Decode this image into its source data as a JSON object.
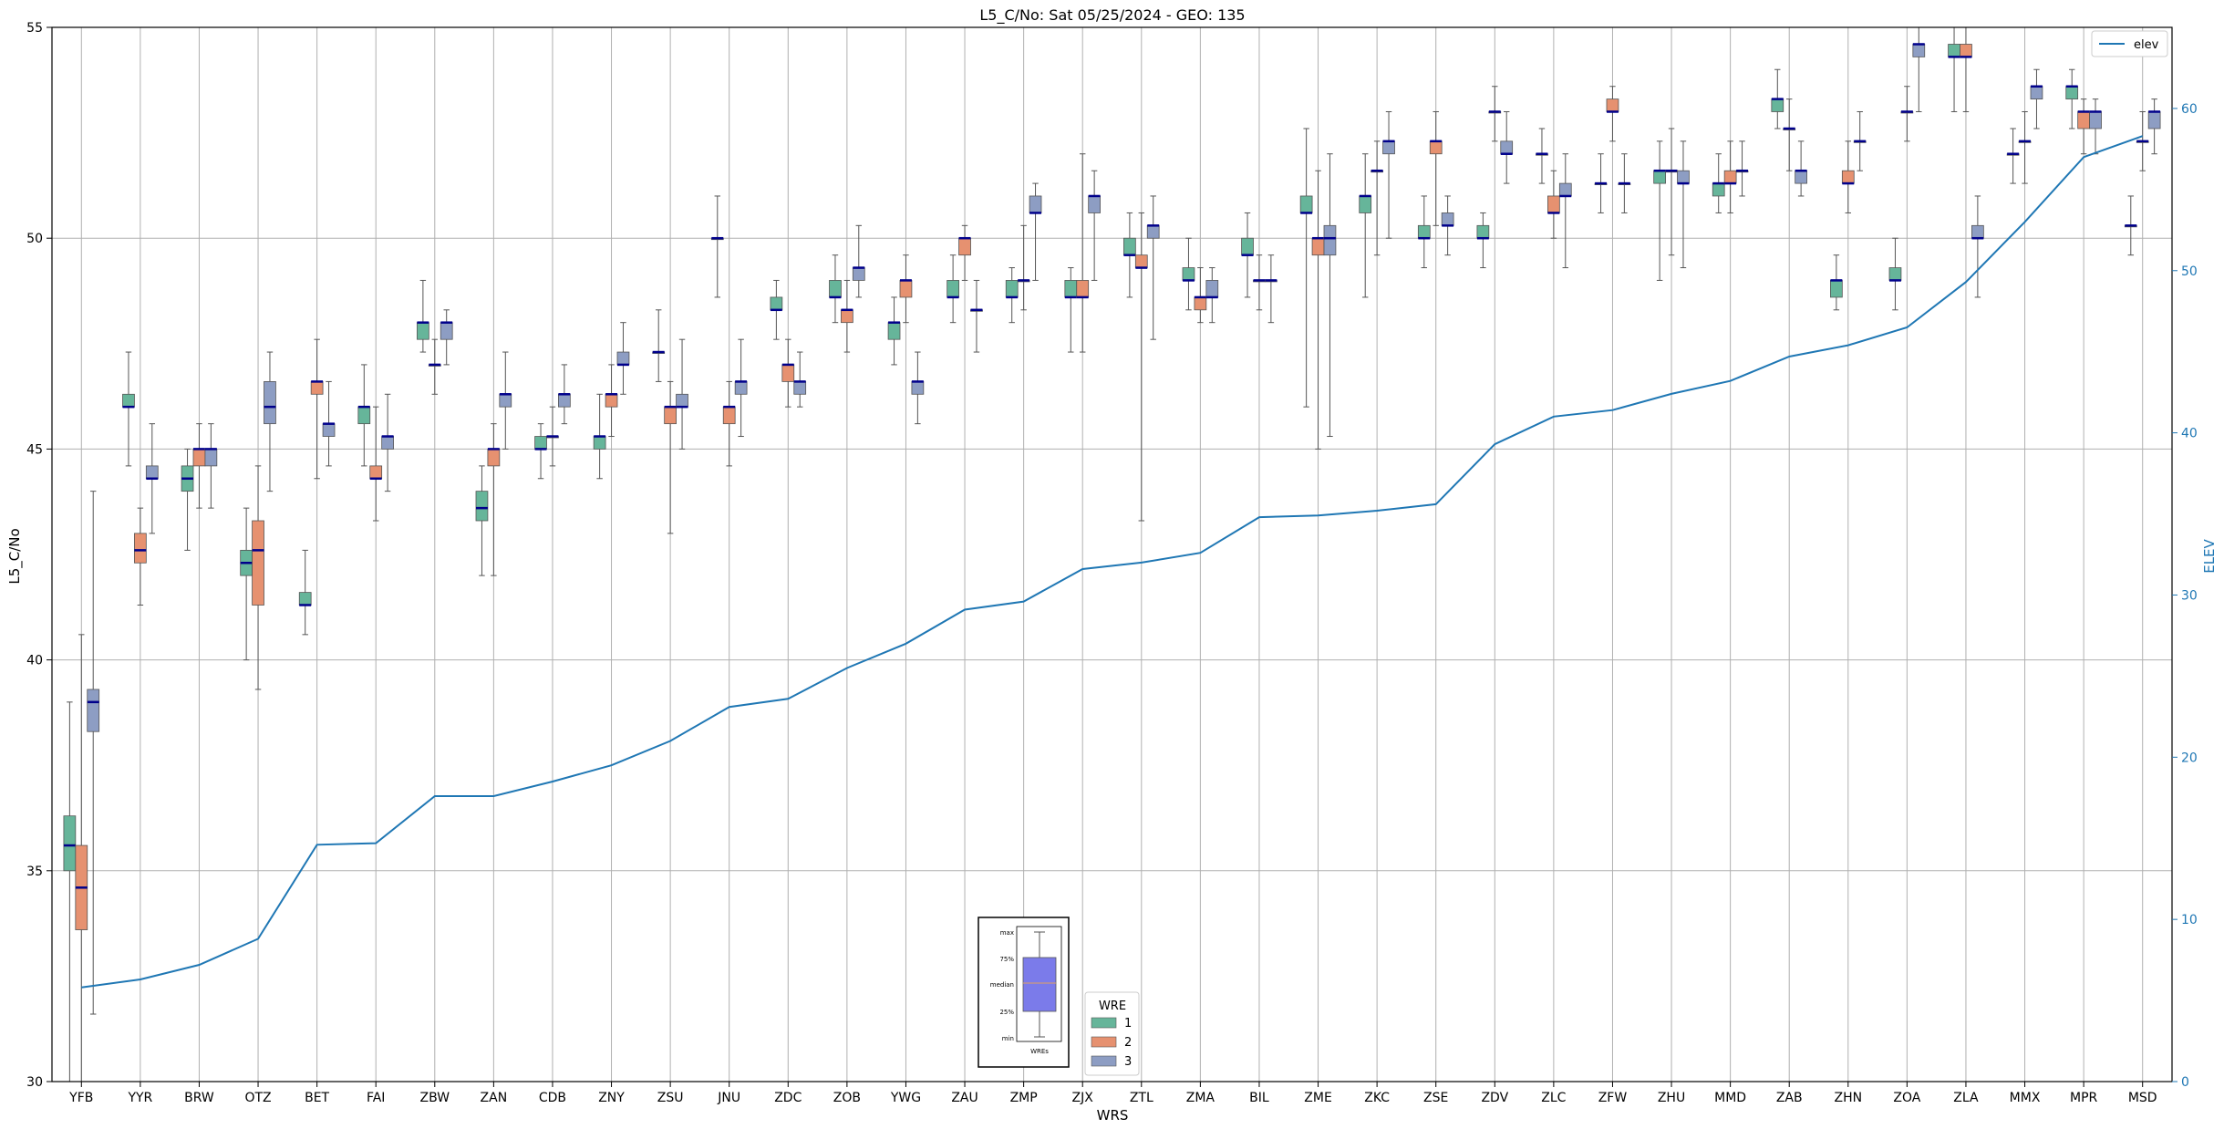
{
  "chart_data": {
    "type": "box",
    "title": "L5_C/No: Sat 05/25/2024 - GEO: 135",
    "xlabel": "WRS",
    "ylabel": "L5_C/No",
    "ylabel_right": "ELEV",
    "ylim": [
      30,
      55
    ],
    "ylim_right": [
      0,
      65
    ],
    "yticks": [
      30,
      35,
      40,
      45,
      50,
      55
    ],
    "yticks_right": [
      0,
      10,
      20,
      30,
      40,
      50,
      60
    ],
    "grid": true,
    "colors": {
      "1": "#66b59a",
      "2": "#e69170",
      "3": "#8d9dc3",
      "median": "#00008b",
      "elev": "#1f77b4"
    },
    "legend_wre": {
      "title": "WRE",
      "items": [
        "1",
        "2",
        "3"
      ],
      "placement": "bottom-center"
    },
    "legend_line": {
      "label": "elev",
      "placement": "top-right"
    },
    "inset_legend": {
      "labels": [
        "max",
        "75%",
        "median",
        "25%",
        "min"
      ],
      "xlabel": "WREs"
    },
    "categories": [
      "YFB",
      "YYR",
      "BRW",
      "OTZ",
      "BET",
      "FAI",
      "ZBW",
      "ZAN",
      "CDB",
      "ZNY",
      "ZSU",
      "JNU",
      "ZDC",
      "ZOB",
      "YWG",
      "ZAU",
      "ZMP",
      "ZJX",
      "ZTL",
      "ZMA",
      "BIL",
      "ZME",
      "ZKC",
      "ZSE",
      "ZDV",
      "ZLC",
      "ZFW",
      "ZHU",
      "MMD",
      "ZAB",
      "ZHN",
      "ZOA",
      "ZLA",
      "MMX",
      "MPR",
      "MSD"
    ],
    "elev": [
      5.8,
      6.3,
      7.2,
      8.8,
      14.6,
      14.7,
      17.6,
      17.6,
      18.5,
      19.5,
      21.0,
      23.1,
      23.6,
      25.5,
      27.0,
      29.1,
      29.6,
      31.6,
      32.0,
      32.6,
      34.8,
      34.9,
      35.2,
      35.6,
      39.3,
      41.0,
      41.4,
      42.4,
      43.2,
      44.7,
      45.4,
      46.5,
      49.3,
      53.0,
      57.0,
      58.3
    ],
    "boxes": [
      {
        "station": "YFB",
        "wre": 1,
        "min": 30.0,
        "q1": 35.0,
        "median": 35.6,
        "q3": 36.3,
        "max": 39.0
      },
      {
        "station": "YFB",
        "wre": 2,
        "min": 30.0,
        "q1": 33.6,
        "median": 34.6,
        "q3": 35.6,
        "max": 40.6
      },
      {
        "station": "YFB",
        "wre": 3,
        "min": 31.6,
        "q1": 38.3,
        "median": 39.0,
        "q3": 39.3,
        "max": 44.0
      },
      {
        "station": "YYR",
        "wre": 1,
        "min": 44.6,
        "q1": 46.0,
        "median": 46.0,
        "q3": 46.3,
        "max": 47.3
      },
      {
        "station": "YYR",
        "wre": 2,
        "min": 41.3,
        "q1": 42.3,
        "median": 42.6,
        "q3": 43.0,
        "max": 43.6
      },
      {
        "station": "YYR",
        "wre": 3,
        "min": 43.0,
        "q1": 44.3,
        "median": 44.3,
        "q3": 44.6,
        "max": 45.6
      },
      {
        "station": "BRW",
        "wre": 1,
        "min": 42.6,
        "q1": 44.0,
        "median": 44.3,
        "q3": 44.6,
        "max": 45.0
      },
      {
        "station": "BRW",
        "wre": 2,
        "min": 43.6,
        "q1": 44.6,
        "median": 45.0,
        "q3": 45.0,
        "max": 45.6
      },
      {
        "station": "BRW",
        "wre": 3,
        "min": 43.6,
        "q1": 44.6,
        "median": 45.0,
        "q3": 45.0,
        "max": 45.6
      },
      {
        "station": "OTZ",
        "wre": 1,
        "min": 40.0,
        "q1": 42.0,
        "median": 42.3,
        "q3": 42.6,
        "max": 43.6
      },
      {
        "station": "OTZ",
        "wre": 2,
        "min": 39.3,
        "q1": 41.3,
        "median": 42.6,
        "q3": 43.3,
        "max": 44.6
      },
      {
        "station": "OTZ",
        "wre": 3,
        "min": 44.0,
        "q1": 45.6,
        "median": 46.0,
        "q3": 46.6,
        "max": 47.3
      },
      {
        "station": "BET",
        "wre": 1,
        "min": 40.6,
        "q1": 41.3,
        "median": 41.3,
        "q3": 41.6,
        "max": 42.6
      },
      {
        "station": "BET",
        "wre": 2,
        "min": 44.3,
        "q1": 46.3,
        "median": 46.6,
        "q3": 46.6,
        "max": 47.6
      },
      {
        "station": "BET",
        "wre": 3,
        "min": 44.6,
        "q1": 45.3,
        "median": 45.6,
        "q3": 45.6,
        "max": 46.6
      },
      {
        "station": "FAI",
        "wre": 1,
        "min": 44.6,
        "q1": 45.6,
        "median": 46.0,
        "q3": 46.0,
        "max": 47.0
      },
      {
        "station": "FAI",
        "wre": 2,
        "min": 43.3,
        "q1": 44.3,
        "median": 44.3,
        "q3": 44.6,
        "max": 46.0
      },
      {
        "station": "FAI",
        "wre": 3,
        "min": 44.0,
        "q1": 45.0,
        "median": 45.3,
        "q3": 45.3,
        "max": 46.3
      },
      {
        "station": "ZBW",
        "wre": 1,
        "min": 47.3,
        "q1": 47.6,
        "median": 48.0,
        "q3": 48.0,
        "max": 49.0
      },
      {
        "station": "ZBW",
        "wre": 2,
        "min": 46.3,
        "q1": 47.0,
        "median": 47.0,
        "q3": 47.0,
        "max": 47.6
      },
      {
        "station": "ZBW",
        "wre": 3,
        "min": 47.0,
        "q1": 47.6,
        "median": 48.0,
        "q3": 48.0,
        "max": 48.3
      },
      {
        "station": "ZAN",
        "wre": 1,
        "min": 42.0,
        "q1": 43.3,
        "median": 43.6,
        "q3": 44.0,
        "max": 44.6
      },
      {
        "station": "ZAN",
        "wre": 2,
        "min": 42.0,
        "q1": 44.6,
        "median": 45.0,
        "q3": 45.0,
        "max": 45.6
      },
      {
        "station": "ZAN",
        "wre": 3,
        "min": 45.0,
        "q1": 46.0,
        "median": 46.3,
        "q3": 46.3,
        "max": 47.3
      },
      {
        "station": "CDB",
        "wre": 1,
        "min": 44.3,
        "q1": 45.0,
        "median": 45.0,
        "q3": 45.3,
        "max": 45.6
      },
      {
        "station": "CDB",
        "wre": 2,
        "min": 44.6,
        "q1": 45.3,
        "median": 45.3,
        "q3": 45.3,
        "max": 46.0
      },
      {
        "station": "CDB",
        "wre": 3,
        "min": 45.6,
        "q1": 46.0,
        "median": 46.3,
        "q3": 46.3,
        "max": 47.0
      },
      {
        "station": "ZNY",
        "wre": 1,
        "min": 44.3,
        "q1": 45.0,
        "median": 45.3,
        "q3": 45.3,
        "max": 46.3
      },
      {
        "station": "ZNY",
        "wre": 2,
        "min": 45.3,
        "q1": 46.0,
        "median": 46.3,
        "q3": 46.3,
        "max": 47.0
      },
      {
        "station": "ZNY",
        "wre": 3,
        "min": 46.3,
        "q1": 47.0,
        "median": 47.0,
        "q3": 47.3,
        "max": 48.0
      },
      {
        "station": "ZSU",
        "wre": 1,
        "min": 46.6,
        "q1": 47.3,
        "median": 47.3,
        "q3": 47.3,
        "max": 48.3
      },
      {
        "station": "ZSU",
        "wre": 2,
        "min": 43.0,
        "q1": 45.6,
        "median": 46.0,
        "q3": 46.0,
        "max": 46.6
      },
      {
        "station": "ZSU",
        "wre": 3,
        "min": 45.0,
        "q1": 46.0,
        "median": 46.0,
        "q3": 46.3,
        "max": 47.6
      },
      {
        "station": "JNU",
        "wre": 1,
        "min": 48.6,
        "q1": 50.0,
        "median": 50.0,
        "q3": 50.0,
        "max": 51.0
      },
      {
        "station": "JNU",
        "wre": 2,
        "min": 44.6,
        "q1": 45.6,
        "median": 46.0,
        "q3": 46.0,
        "max": 46.6
      },
      {
        "station": "JNU",
        "wre": 3,
        "min": 45.3,
        "q1": 46.3,
        "median": 46.6,
        "q3": 46.6,
        "max": 47.6
      },
      {
        "station": "ZDC",
        "wre": 1,
        "min": 47.6,
        "q1": 48.3,
        "median": 48.3,
        "q3": 48.6,
        "max": 49.0
      },
      {
        "station": "ZDC",
        "wre": 2,
        "min": 46.0,
        "q1": 46.6,
        "median": 47.0,
        "q3": 47.0,
        "max": 47.6
      },
      {
        "station": "ZDC",
        "wre": 3,
        "min": 46.0,
        "q1": 46.3,
        "median": 46.6,
        "q3": 46.6,
        "max": 47.3
      },
      {
        "station": "ZOB",
        "wre": 1,
        "min": 48.0,
        "q1": 48.6,
        "median": 48.6,
        "q3": 49.0,
        "max": 49.6
      },
      {
        "station": "ZOB",
        "wre": 2,
        "min": 47.3,
        "q1": 48.0,
        "median": 48.3,
        "q3": 48.3,
        "max": 49.0
      },
      {
        "station": "ZOB",
        "wre": 3,
        "min": 48.6,
        "q1": 49.0,
        "median": 49.3,
        "q3": 49.3,
        "max": 50.3
      },
      {
        "station": "YWG",
        "wre": 1,
        "min": 47.0,
        "q1": 47.6,
        "median": 48.0,
        "q3": 48.0,
        "max": 48.6
      },
      {
        "station": "YWG",
        "wre": 2,
        "min": 48.0,
        "q1": 48.6,
        "median": 49.0,
        "q3": 49.0,
        "max": 49.6
      },
      {
        "station": "YWG",
        "wre": 3,
        "min": 45.6,
        "q1": 46.3,
        "median": 46.6,
        "q3": 46.6,
        "max": 47.3
      },
      {
        "station": "ZAU",
        "wre": 1,
        "min": 48.0,
        "q1": 48.6,
        "median": 48.6,
        "q3": 49.0,
        "max": 49.6
      },
      {
        "station": "ZAU",
        "wre": 2,
        "min": 49.0,
        "q1": 49.6,
        "median": 50.0,
        "q3": 50.0,
        "max": 50.3
      },
      {
        "station": "ZAU",
        "wre": 3,
        "min": 47.3,
        "q1": 48.3,
        "median": 48.3,
        "q3": 48.3,
        "max": 49.0
      },
      {
        "station": "ZMP",
        "wre": 1,
        "min": 48.0,
        "q1": 48.6,
        "median": 48.6,
        "q3": 49.0,
        "max": 49.3
      },
      {
        "station": "ZMP",
        "wre": 2,
        "min": 48.3,
        "q1": 49.0,
        "median": 49.0,
        "q3": 49.0,
        "max": 50.3
      },
      {
        "station": "ZMP",
        "wre": 3,
        "min": 49.0,
        "q1": 50.6,
        "median": 50.6,
        "q3": 51.0,
        "max": 51.3
      },
      {
        "station": "ZJX",
        "wre": 1,
        "min": 47.3,
        "q1": 48.6,
        "median": 48.6,
        "q3": 49.0,
        "max": 49.3
      },
      {
        "station": "ZJX",
        "wre": 2,
        "min": 47.3,
        "q1": 48.6,
        "median": 48.6,
        "q3": 49.0,
        "max": 52.0
      },
      {
        "station": "ZJX",
        "wre": 3,
        "min": 49.0,
        "q1": 50.6,
        "median": 51.0,
        "q3": 51.0,
        "max": 51.6
      },
      {
        "station": "ZTL",
        "wre": 1,
        "min": 48.6,
        "q1": 49.6,
        "median": 49.6,
        "q3": 50.0,
        "max": 50.6
      },
      {
        "station": "ZTL",
        "wre": 2,
        "min": 43.3,
        "q1": 49.3,
        "median": 49.3,
        "q3": 49.6,
        "max": 50.6
      },
      {
        "station": "ZTL",
        "wre": 3,
        "min": 47.6,
        "q1": 50.0,
        "median": 50.3,
        "q3": 50.3,
        "max": 51.0
      },
      {
        "station": "ZMA",
        "wre": 1,
        "min": 48.3,
        "q1": 49.0,
        "median": 49.0,
        "q3": 49.3,
        "max": 50.0
      },
      {
        "station": "ZMA",
        "wre": 2,
        "min": 48.0,
        "q1": 48.3,
        "median": 48.6,
        "q3": 48.6,
        "max": 49.3
      },
      {
        "station": "ZMA",
        "wre": 3,
        "min": 48.0,
        "q1": 48.6,
        "median": 48.6,
        "q3": 49.0,
        "max": 49.3
      },
      {
        "station": "BIL",
        "wre": 1,
        "min": 48.6,
        "q1": 49.6,
        "median": 49.6,
        "q3": 50.0,
        "max": 50.6
      },
      {
        "station": "BIL",
        "wre": 2,
        "min": 48.3,
        "q1": 49.0,
        "median": 49.0,
        "q3": 49.0,
        "max": 49.6
      },
      {
        "station": "BIL",
        "wre": 3,
        "min": 48.0,
        "q1": 49.0,
        "median": 49.0,
        "q3": 49.0,
        "max": 49.6
      },
      {
        "station": "ZME",
        "wre": 1,
        "min": 46.0,
        "q1": 50.6,
        "median": 50.6,
        "q3": 51.0,
        "max": 52.6
      },
      {
        "station": "ZME",
        "wre": 2,
        "min": 45.0,
        "q1": 49.6,
        "median": 50.0,
        "q3": 50.0,
        "max": 51.6
      },
      {
        "station": "ZME",
        "wre": 3,
        "min": 45.3,
        "q1": 49.6,
        "median": 50.0,
        "q3": 50.3,
        "max": 52.0
      },
      {
        "station": "ZKC",
        "wre": 1,
        "min": 48.6,
        "q1": 50.6,
        "median": 51.0,
        "q3": 51.0,
        "max": 52.0
      },
      {
        "station": "ZKC",
        "wre": 2,
        "min": 49.6,
        "q1": 51.6,
        "median": 51.6,
        "q3": 51.6,
        "max": 52.3
      },
      {
        "station": "ZKC",
        "wre": 3,
        "min": 50.0,
        "q1": 52.0,
        "median": 52.3,
        "q3": 52.3,
        "max": 53.0
      },
      {
        "station": "ZSE",
        "wre": 1,
        "min": 49.3,
        "q1": 50.0,
        "median": 50.0,
        "q3": 50.3,
        "max": 51.0
      },
      {
        "station": "ZSE",
        "wre": 2,
        "min": 50.3,
        "q1": 52.0,
        "median": 52.3,
        "q3": 52.3,
        "max": 53.0
      },
      {
        "station": "ZSE",
        "wre": 3,
        "min": 49.6,
        "q1": 50.3,
        "median": 50.3,
        "q3": 50.6,
        "max": 51.0
      },
      {
        "station": "ZDV",
        "wre": 1,
        "min": 49.3,
        "q1": 50.0,
        "median": 50.0,
        "q3": 50.3,
        "max": 50.6
      },
      {
        "station": "ZDV",
        "wre": 2,
        "min": 52.3,
        "q1": 53.0,
        "median": 53.0,
        "q3": 53.0,
        "max": 53.6
      },
      {
        "station": "ZDV",
        "wre": 3,
        "min": 51.3,
        "q1": 52.0,
        "median": 52.0,
        "q3": 52.3,
        "max": 53.0
      },
      {
        "station": "ZLC",
        "wre": 1,
        "min": 51.3,
        "q1": 52.0,
        "median": 52.0,
        "q3": 52.0,
        "max": 52.6
      },
      {
        "station": "ZLC",
        "wre": 2,
        "min": 50.0,
        "q1": 50.6,
        "median": 50.6,
        "q3": 51.0,
        "max": 51.6
      },
      {
        "station": "ZLC",
        "wre": 3,
        "min": 49.3,
        "q1": 51.0,
        "median": 51.0,
        "q3": 51.3,
        "max": 52.0
      },
      {
        "station": "ZFW",
        "wre": 1,
        "min": 50.6,
        "q1": 51.3,
        "median": 51.3,
        "q3": 51.3,
        "max": 52.0
      },
      {
        "station": "ZFW",
        "wre": 2,
        "min": 52.3,
        "q1": 53.0,
        "median": 53.0,
        "q3": 53.3,
        "max": 53.6
      },
      {
        "station": "ZFW",
        "wre": 3,
        "min": 50.6,
        "q1": 51.3,
        "median": 51.3,
        "q3": 51.3,
        "max": 52.0
      },
      {
        "station": "ZHU",
        "wre": 1,
        "min": 49.0,
        "q1": 51.3,
        "median": 51.6,
        "q3": 51.6,
        "max": 52.3
      },
      {
        "station": "ZHU",
        "wre": 2,
        "min": 49.6,
        "q1": 51.6,
        "median": 51.6,
        "q3": 51.6,
        "max": 52.6
      },
      {
        "station": "ZHU",
        "wre": 3,
        "min": 49.3,
        "q1": 51.3,
        "median": 51.3,
        "q3": 51.6,
        "max": 52.3
      },
      {
        "station": "MMD",
        "wre": 1,
        "min": 50.6,
        "q1": 51.0,
        "median": 51.3,
        "q3": 51.3,
        "max": 52.0
      },
      {
        "station": "MMD",
        "wre": 2,
        "min": 50.6,
        "q1": 51.3,
        "median": 51.3,
        "q3": 51.6,
        "max": 52.3
      },
      {
        "station": "MMD",
        "wre": 3,
        "min": 51.0,
        "q1": 51.6,
        "median": 51.6,
        "q3": 51.6,
        "max": 52.3
      },
      {
        "station": "ZAB",
        "wre": 1,
        "min": 52.6,
        "q1": 53.0,
        "median": 53.3,
        "q3": 53.3,
        "max": 54.0
      },
      {
        "station": "ZAB",
        "wre": 2,
        "min": 51.6,
        "q1": 52.6,
        "median": 52.6,
        "q3": 52.6,
        "max": 53.3
      },
      {
        "station": "ZAB",
        "wre": 3,
        "min": 51.0,
        "q1": 51.3,
        "median": 51.6,
        "q3": 51.6,
        "max": 52.3
      },
      {
        "station": "ZHN",
        "wre": 1,
        "min": 48.3,
        "q1": 48.6,
        "median": 49.0,
        "q3": 49.0,
        "max": 49.6
      },
      {
        "station": "ZHN",
        "wre": 2,
        "min": 50.6,
        "q1": 51.3,
        "median": 51.3,
        "q3": 51.6,
        "max": 52.3
      },
      {
        "station": "ZHN",
        "wre": 3,
        "min": 51.6,
        "q1": 52.3,
        "median": 52.3,
        "q3": 52.3,
        "max": 53.0
      },
      {
        "station": "ZOA",
        "wre": 1,
        "min": 48.3,
        "q1": 49.0,
        "median": 49.0,
        "q3": 49.3,
        "max": 50.0
      },
      {
        "station": "ZOA",
        "wre": 2,
        "min": 52.3,
        "q1": 53.0,
        "median": 53.0,
        "q3": 53.0,
        "max": 53.6
      },
      {
        "station": "ZOA",
        "wre": 3,
        "min": 53.0,
        "q1": 54.3,
        "median": 54.6,
        "q3": 54.6,
        "max": 55.0
      },
      {
        "station": "ZLA",
        "wre": 1,
        "min": 53.0,
        "q1": 54.3,
        "median": 54.3,
        "q3": 54.6,
        "max": 55.0
      },
      {
        "station": "ZLA",
        "wre": 2,
        "min": 53.0,
        "q1": 54.3,
        "median": 54.3,
        "q3": 54.6,
        "max": 55.0
      },
      {
        "station": "ZLA",
        "wre": 3,
        "min": 48.6,
        "q1": 50.0,
        "median": 50.0,
        "q3": 50.3,
        "max": 51.0
      },
      {
        "station": "MMX",
        "wre": 1,
        "min": 51.3,
        "q1": 52.0,
        "median": 52.0,
        "q3": 52.0,
        "max": 52.6
      },
      {
        "station": "MMX",
        "wre": 2,
        "min": 51.3,
        "q1": 52.3,
        "median": 52.3,
        "q3": 52.3,
        "max": 53.0
      },
      {
        "station": "MMX",
        "wre": 3,
        "min": 52.6,
        "q1": 53.3,
        "median": 53.6,
        "q3": 53.6,
        "max": 54.0
      },
      {
        "station": "MPR",
        "wre": 1,
        "min": 52.6,
        "q1": 53.3,
        "median": 53.6,
        "q3": 53.6,
        "max": 54.0
      },
      {
        "station": "MPR",
        "wre": 2,
        "min": 52.0,
        "q1": 52.6,
        "median": 53.0,
        "q3": 53.0,
        "max": 53.3
      },
      {
        "station": "MPR",
        "wre": 3,
        "min": 52.0,
        "q1": 52.6,
        "median": 53.0,
        "q3": 53.0,
        "max": 53.3
      },
      {
        "station": "MSD",
        "wre": 1,
        "min": 49.6,
        "q1": 50.3,
        "median": 50.3,
        "q3": 50.3,
        "max": 51.0
      },
      {
        "station": "MSD",
        "wre": 2,
        "min": 51.6,
        "q1": 52.3,
        "median": 52.3,
        "q3": 52.3,
        "max": 53.0
      },
      {
        "station": "MSD",
        "wre": 3,
        "min": 52.0,
        "q1": 52.6,
        "median": 53.0,
        "q3": 53.0,
        "max": 53.3
      }
    ]
  }
}
